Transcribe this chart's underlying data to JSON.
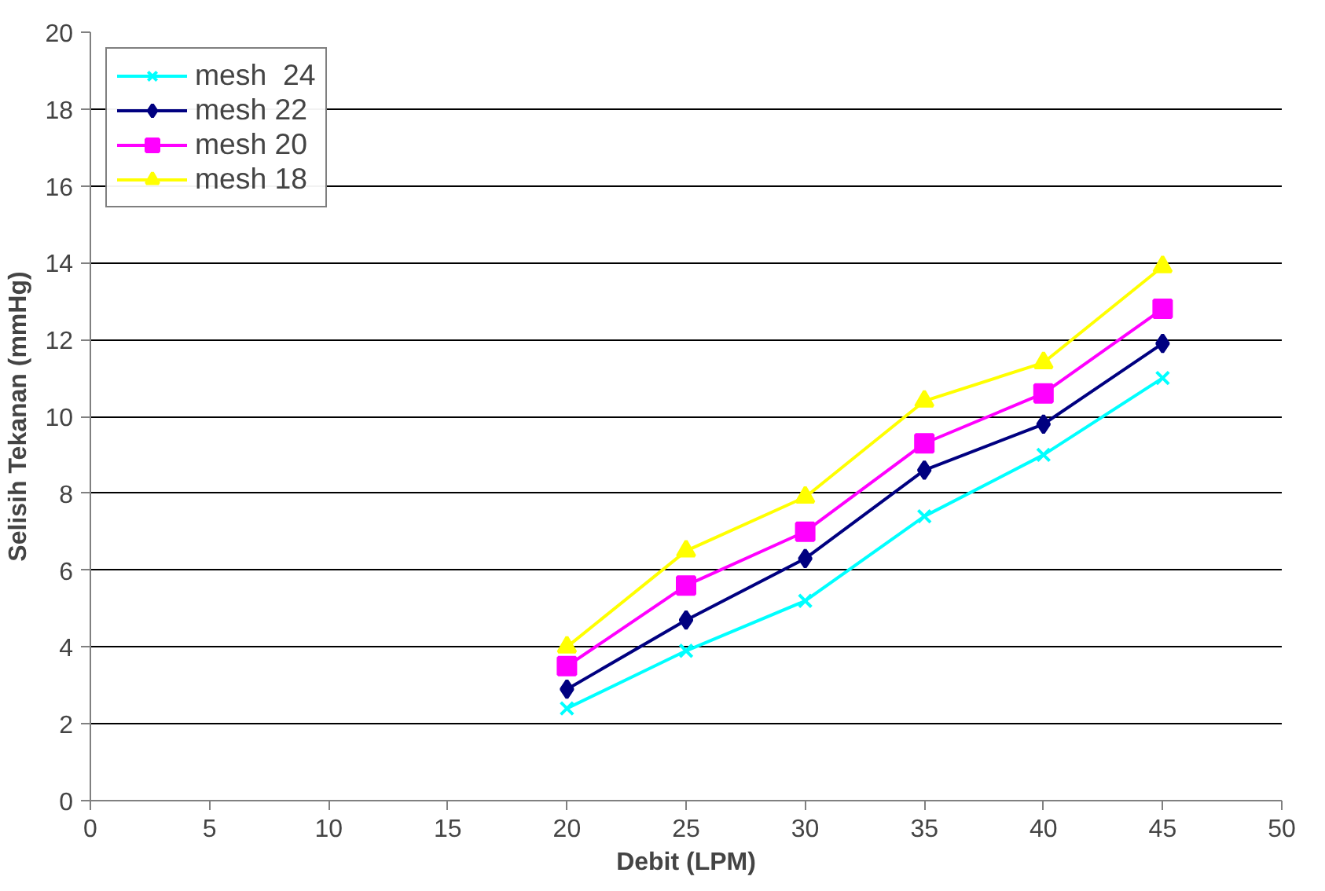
{
  "chart_data": {
    "type": "line",
    "xlabel": "Debit (LPM)",
    "ylabel": "Selisih Tekanan (mmHg)",
    "x": [
      20,
      25,
      30,
      35,
      40,
      45
    ],
    "xlim": [
      0,
      50
    ],
    "xticks": [
      0,
      5,
      10,
      15,
      20,
      25,
      30,
      35,
      40,
      45,
      50
    ],
    "ylim": [
      0,
      20
    ],
    "yticks": [
      0,
      2,
      4,
      6,
      8,
      10,
      12,
      14,
      16,
      18,
      20
    ],
    "grid": "y",
    "legend": "top left",
    "series": [
      {
        "name": "mesh  24",
        "color": "#00ffff",
        "marker": "cross",
        "values": [
          2.4,
          3.9,
          5.2,
          7.4,
          9.0,
          11.0
        ]
      },
      {
        "name": "mesh 22",
        "color": "#000080",
        "marker": "diamond",
        "values": [
          2.9,
          4.7,
          6.3,
          8.6,
          9.8,
          11.9
        ]
      },
      {
        "name": "mesh 20",
        "color": "#ff00ff",
        "marker": "square",
        "values": [
          3.5,
          5.6,
          7.0,
          9.3,
          10.6,
          12.8
        ]
      },
      {
        "name": "mesh 18",
        "color": "#ffff00",
        "marker": "triangle",
        "values": [
          4.0,
          6.5,
          7.9,
          10.4,
          11.4,
          13.9
        ]
      }
    ]
  }
}
